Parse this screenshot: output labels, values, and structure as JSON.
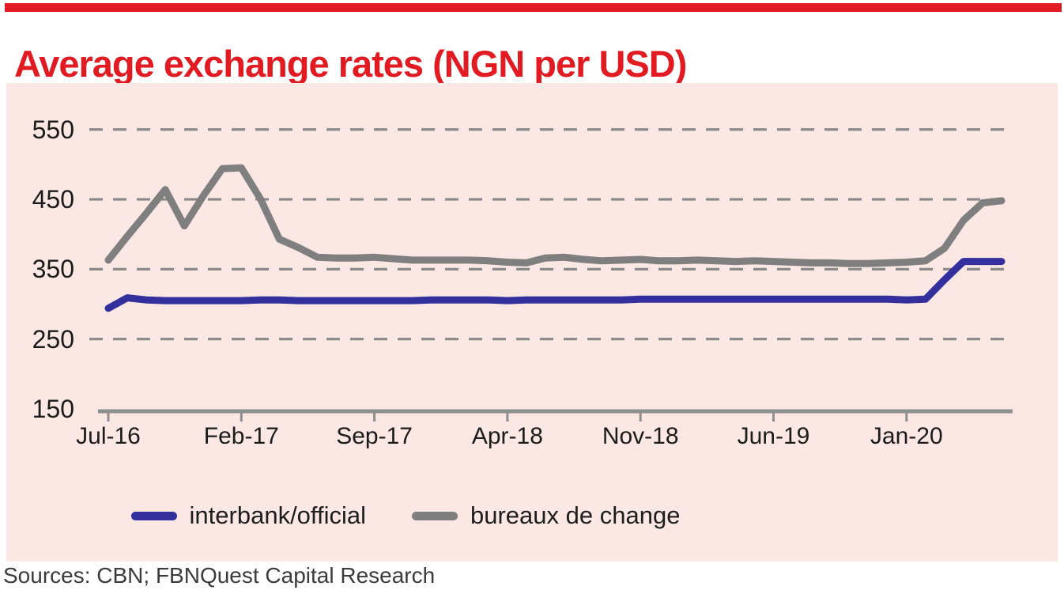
{
  "header": {
    "title": "Average exchange rates (NGN per USD)"
  },
  "footer": {
    "sources": "Sources: CBN; FBNQuest Capital Research"
  },
  "colors": {
    "accent_red": "#e21b22",
    "panel_pink": "#fbe7e3",
    "interbank_blue": "#33309e",
    "bdc_gray": "#7f7f7f",
    "grid_gray": "#8a8a8a",
    "axis_gray": "#8f8f8f",
    "label_dark": "#1b1b1b"
  },
  "chart_data": {
    "type": "line",
    "title": "Average exchange rates (NGN per USD)",
    "xlabel": "",
    "ylabel": "",
    "ylim": [
      150,
      590
    ],
    "y_ticks": [
      550,
      450,
      350,
      250,
      150
    ],
    "grid": "horizontal dashed gridlines at 250, 350, 450, 550",
    "legend_position": "bottom center",
    "x_tick_labels": [
      "Jul-16",
      "Feb-17",
      "Sep-17",
      "Apr-18",
      "Nov-18",
      "Jun-19",
      "Jan-20"
    ],
    "x_tick_every": 7,
    "x": [
      "Jul-16",
      "Aug-16",
      "Sep-16",
      "Oct-16",
      "Nov-16",
      "Dec-16",
      "Jan-17",
      "Feb-17",
      "Mar-17",
      "Apr-17",
      "May-17",
      "Jun-17",
      "Jul-17",
      "Aug-17",
      "Sep-17",
      "Oct-17",
      "Nov-17",
      "Dec-17",
      "Jan-18",
      "Feb-18",
      "Mar-18",
      "Apr-18",
      "May-18",
      "Jun-18",
      "Jul-18",
      "Aug-18",
      "Sep-18",
      "Oct-18",
      "Nov-18",
      "Dec-18",
      "Jan-19",
      "Feb-19",
      "Mar-19",
      "Apr-19",
      "May-19",
      "Jun-19",
      "Jul-19",
      "Aug-19",
      "Sep-19",
      "Oct-19",
      "Nov-19",
      "Dec-19",
      "Jan-20",
      "Feb-20",
      "Mar-20",
      "Apr-20",
      "May-20",
      "Jun-20"
    ],
    "series": [
      {
        "name": "interbank/official",
        "color": "#33309e",
        "values": [
          294,
          309,
          306,
          305,
          305,
          305,
          305,
          305,
          306,
          306,
          305,
          305,
          305,
          305,
          305,
          305,
          305,
          306,
          306,
          306,
          306,
          305,
          306,
          306,
          306,
          306,
          306,
          306,
          307,
          307,
          307,
          307,
          307,
          307,
          307,
          307,
          307,
          307,
          307,
          307,
          307,
          307,
          306,
          307,
          335,
          361,
          361,
          361
        ]
      },
      {
        "name": "bureaux de change",
        "color": "#7f7f7f",
        "values": [
          363,
          397,
          430,
          464,
          412,
          455,
          494,
          495,
          451,
          393,
          381,
          367,
          366,
          366,
          367,
          365,
          363,
          363,
          363,
          363,
          362,
          360,
          359,
          366,
          367,
          364,
          362,
          363,
          364,
          362,
          362,
          363,
          362,
          361,
          362,
          361,
          360,
          359,
          359,
          358,
          358,
          359,
          360,
          362,
          380,
          420,
          445,
          448
        ]
      }
    ]
  }
}
